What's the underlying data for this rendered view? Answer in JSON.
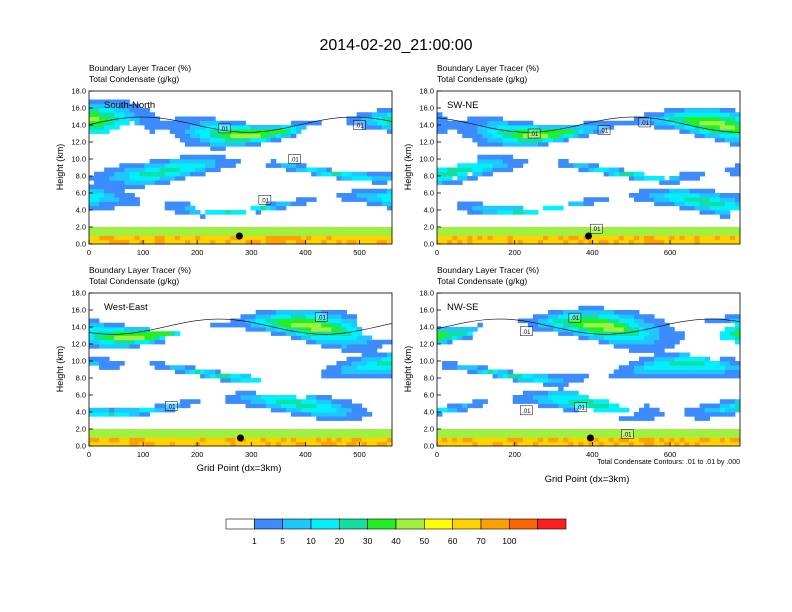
{
  "title": "2014-02-20_21:00:00",
  "footnote": "Total Condensate Contours: .01 to .01 by .000",
  "colorbar": {
    "labels": [
      "1",
      "5",
      "10",
      "20",
      "30",
      "40",
      "50",
      "60",
      "70",
      "100"
    ],
    "colors": [
      "#ffffff",
      "#3c8cff",
      "#1ec8ff",
      "#00f0ff",
      "#10e0a0",
      "#22f022",
      "#a0f040",
      "#ffff00",
      "#ffd200",
      "#ffa000",
      "#ff6400",
      "#ff1e1e"
    ]
  },
  "chart_data": [
    {
      "type": "heatmap",
      "name": "South-North",
      "line1": "Boundary Layer Tracer   (%)",
      "line2": "Total Condensate   (g/kg)",
      "ylabel": "Height (km)",
      "xlabel": "",
      "xlim": [
        0,
        560
      ],
      "ylim": [
        0,
        18
      ],
      "xticks": [
        "0",
        "100",
        "200",
        "300",
        "400",
        "500"
      ],
      "xtick_values": [
        0,
        100,
        200,
        300,
        400,
        500
      ],
      "yticks": [
        "0.0",
        "2.0",
        "4.0",
        "6.0",
        "8.0",
        "10.0",
        "12.0",
        "14.0",
        "16.0",
        "18.0"
      ],
      "marker_x": 278,
      "contour_labels": [
        {
          "text": ".01",
          "x": 250,
          "y": 13.6
        },
        {
          "text": ".01",
          "x": 500,
          "y": 14.0
        },
        {
          "text": ".01",
          "x": 380,
          "y": 10.0
        },
        {
          "text": ".01",
          "x": 325,
          "y": 5.2
        }
      ]
    },
    {
      "type": "heatmap",
      "name": "SW-NE",
      "line1": "Boundary Layer Tracer   (%)",
      "line2": "Total Condensate   (g/kg)",
      "ylabel": "Height (km)",
      "xlabel": "",
      "xlim": [
        0,
        780
      ],
      "ylim": [
        0,
        18
      ],
      "xticks": [
        "0",
        "200",
        "400",
        "600"
      ],
      "xtick_values": [
        0,
        200,
        400,
        600
      ],
      "yticks": [
        "0.0",
        "2.0",
        "4.0",
        "6.0",
        "8.0",
        "10.0",
        "12.0",
        "14.0",
        "16.0",
        "18.0"
      ],
      "marker_x": 390,
      "contour_labels": [
        {
          "text": ".01",
          "x": 250,
          "y": 13.0
        },
        {
          "text": ".01",
          "x": 430,
          "y": 13.4
        },
        {
          "text": ".01",
          "x": 535,
          "y": 14.3
        },
        {
          "text": ".01",
          "x": 410,
          "y": 1.8
        }
      ]
    },
    {
      "type": "heatmap",
      "name": "West-East",
      "line1": "Boundary Layer Tracer   (%)",
      "line2": "Total Condensate   (g/kg)",
      "ylabel": "Height (km)",
      "xlabel": "Grid Point (dx=3km)",
      "xlim": [
        0,
        560
      ],
      "ylim": [
        0,
        18
      ],
      "xticks": [
        "0",
        "100",
        "200",
        "300",
        "400",
        "500"
      ],
      "xtick_values": [
        0,
        100,
        200,
        300,
        400,
        500
      ],
      "yticks": [
        "0.0",
        "2.0",
        "4.0",
        "6.0",
        "8.0",
        "10.0",
        "12.0",
        "14.0",
        "16.0",
        "18.0"
      ],
      "marker_x": 280,
      "contour_labels": [
        {
          "text": ".01",
          "x": 430,
          "y": 15.2
        },
        {
          "text": ".01",
          "x": 152,
          "y": 4.7
        }
      ]
    },
    {
      "type": "heatmap",
      "name": "NW-SE",
      "line1": "Boundary Layer Tracer   (%)",
      "line2": "Total Condensate   (g/kg)",
      "ylabel": "Height (km)",
      "xlabel": "Grid Point (dx=3km)",
      "xlim": [
        0,
        780
      ],
      "ylim": [
        0,
        18
      ],
      "xticks": [
        "0",
        "200",
        "400",
        "600"
      ],
      "xtick_values": [
        0,
        200,
        400,
        600
      ],
      "yticks": [
        "0.0",
        "2.0",
        "4.0",
        "6.0",
        "8.0",
        "10.0",
        "12.0",
        "14.0",
        "16.0",
        "18.0"
      ],
      "marker_x": 395,
      "contour_labels": [
        {
          "text": ".01",
          "x": 230,
          "y": 13.5
        },
        {
          "text": ".01",
          "x": 355,
          "y": 15.1
        },
        {
          "text": ".01",
          "x": 230,
          "y": 4.2
        },
        {
          "text": ".01",
          "x": 370,
          "y": 4.6
        },
        {
          "text": ".01",
          "x": 490,
          "y": 1.4
        }
      ]
    }
  ]
}
